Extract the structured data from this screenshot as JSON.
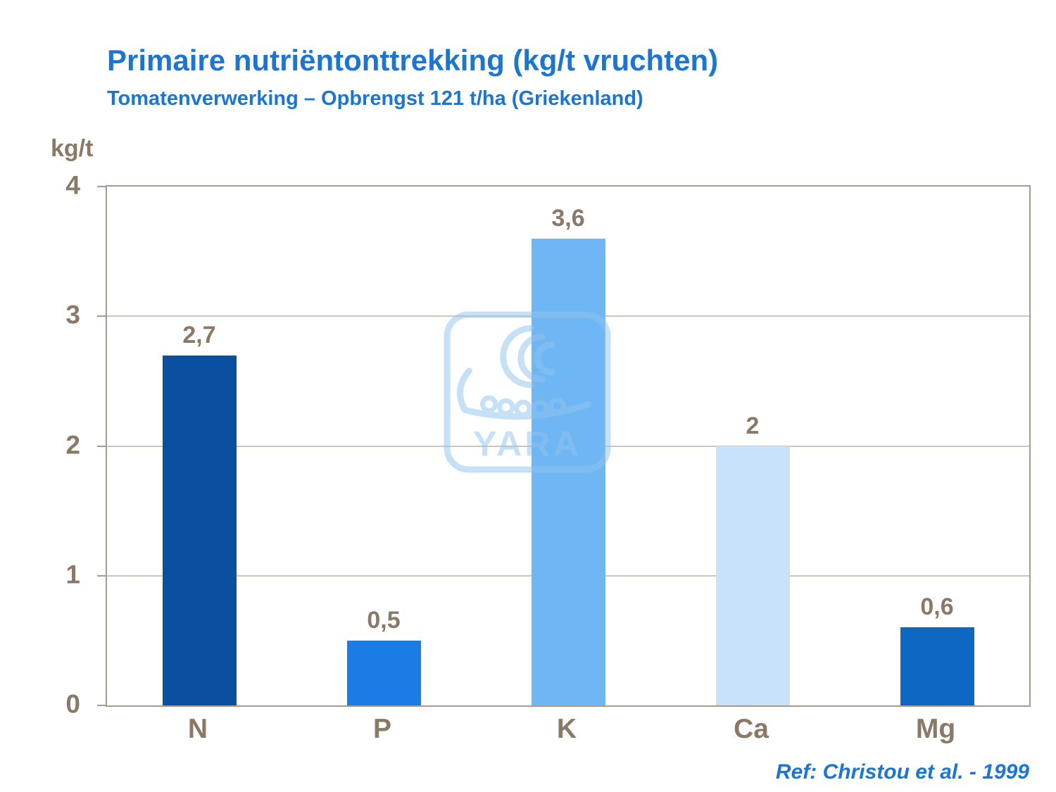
{
  "header": {
    "title": "Primaire nutriëntonttrekking (kg/t vruchten)",
    "subtitle": "Tomatenverwerking – Opbrengst 121 t/ha (Griekenland)"
  },
  "chart_data": {
    "type": "bar",
    "title": "Primaire nutriëntonttrekking (kg/t vruchten)",
    "subtitle": "Tomatenverwerking – Opbrengst 121 t/ha (Griekenland)",
    "ylabel": "kg/t",
    "xlabel": "",
    "categories": [
      "N",
      "P",
      "K",
      "Ca",
      "Mg"
    ],
    "values": [
      2.7,
      0.5,
      3.6,
      2,
      0.6
    ],
    "value_labels": [
      "2,7",
      "0,5",
      "3,6",
      "2",
      "0,6"
    ],
    "bar_colors": [
      "#0B4FA1",
      "#1B7CE6",
      "#6FB6F5",
      "#C7E2FA",
      "#0E67C2"
    ],
    "ylim": [
      0,
      4
    ],
    "yticks": [
      0,
      1,
      2,
      3,
      4
    ],
    "grid": true,
    "legend": false
  },
  "footer": {
    "reference": "Ref: Christou et al. - 1999"
  },
  "watermark": {
    "name": "yara-logo",
    "text": "YARA",
    "color": "#8FC5EF"
  },
  "colors": {
    "title_blue": "#1B75D1",
    "axis_text_brown": "#8A7967",
    "frame": "#A69B8D",
    "gridline": "#CCC6BD"
  }
}
